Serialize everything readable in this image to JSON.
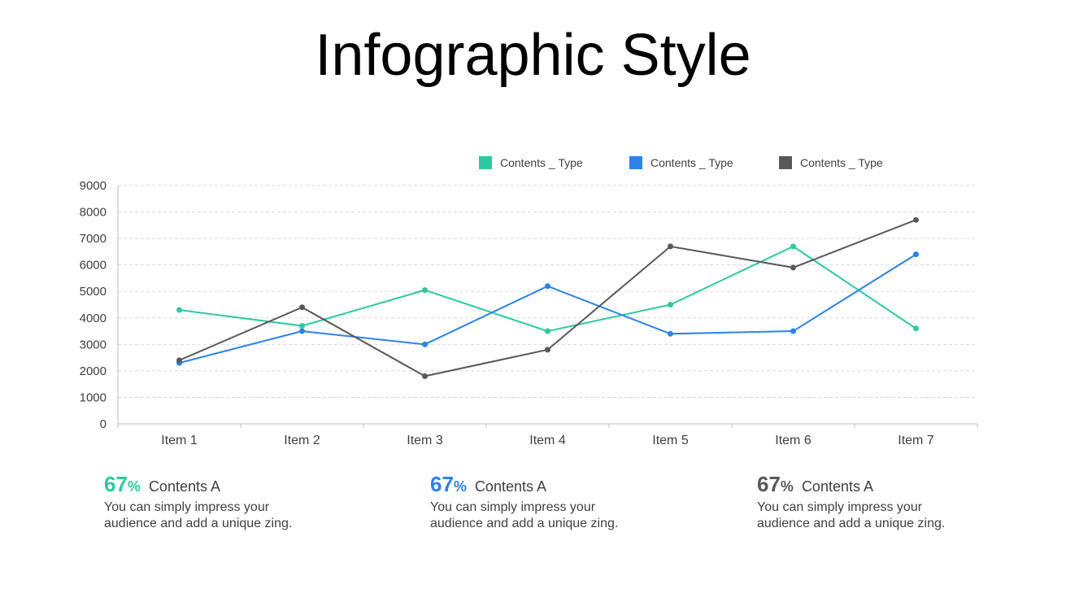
{
  "title": "Infographic Style",
  "colors": {
    "series1": "#2cc9a0",
    "series2": "#2d82e8",
    "series3": "#595959"
  },
  "chart_data": {
    "type": "line",
    "categories": [
      "Item 1",
      "Item 2",
      "Item 3",
      "Item 4",
      "Item 5",
      "Item 6",
      "Item 7"
    ],
    "series": [
      {
        "name": "Contents _ Type",
        "color": "#2cc9a0",
        "values": [
          4300,
          3700,
          5050,
          3500,
          4500,
          6700,
          3600
        ]
      },
      {
        "name": "Contents _ Type",
        "color": "#2d82e8",
        "values": [
          2300,
          3500,
          3000,
          5200,
          3400,
          3500,
          6400
        ]
      },
      {
        "name": "Contents _ Type",
        "color": "#595959",
        "values": [
          2400,
          4400,
          1800,
          2800,
          6700,
          5900,
          7700
        ]
      }
    ],
    "yticks": [
      "0",
      "1000",
      "2000",
      "3000",
      "4000",
      "5000",
      "6000",
      "7000",
      "8000",
      "9000"
    ],
    "ylim": [
      0,
      9000
    ],
    "grid": true,
    "legend_position": "top-right"
  },
  "stats": [
    {
      "value": "67",
      "sign": "%",
      "label": "Contents A",
      "desc": "You can simply impress your audience and add a unique zing.",
      "color": "#2cc9a0"
    },
    {
      "value": "67",
      "sign": "%",
      "label": "Contents A",
      "desc": "You can simply impress your audience and add a unique zing.",
      "color": "#2d82e8"
    },
    {
      "value": "67",
      "sign": "%",
      "label": "Contents A",
      "desc": "You can simply impress your audience and add a unique zing.",
      "color": "#595959"
    }
  ]
}
